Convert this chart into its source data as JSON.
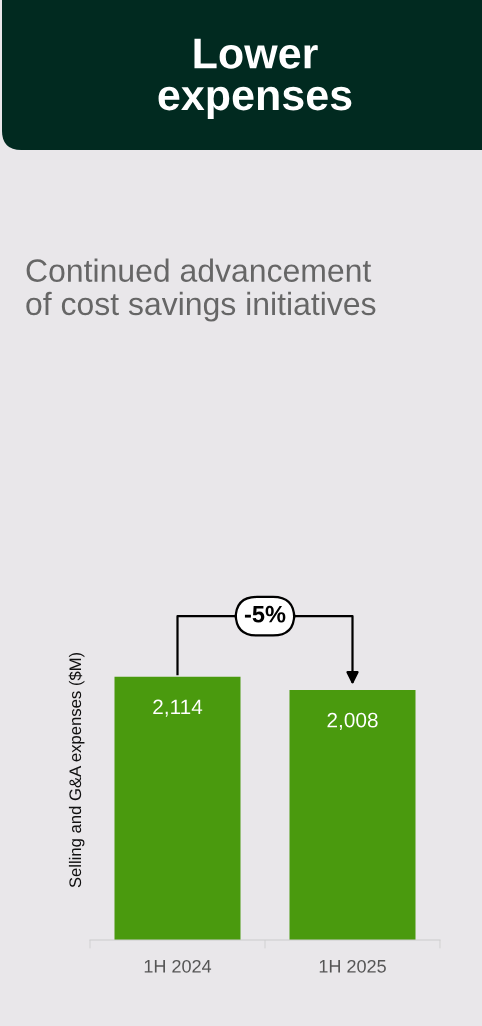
{
  "chart_data": {
    "type": "bar",
    "title": "Lower\nexpenses",
    "subtitle": "Continued advancement\nof cost savings initiatives",
    "ylabel": "Selling and G&A expenses ($M)",
    "categories": [
      "1H 2024",
      "1H 2025"
    ],
    "values": [
      2114,
      2008
    ],
    "color": "#4a9a0e",
    "value_labels": [
      "2,114",
      "2,008"
    ],
    "annotations": [
      "-5%"
    ]
  }
}
